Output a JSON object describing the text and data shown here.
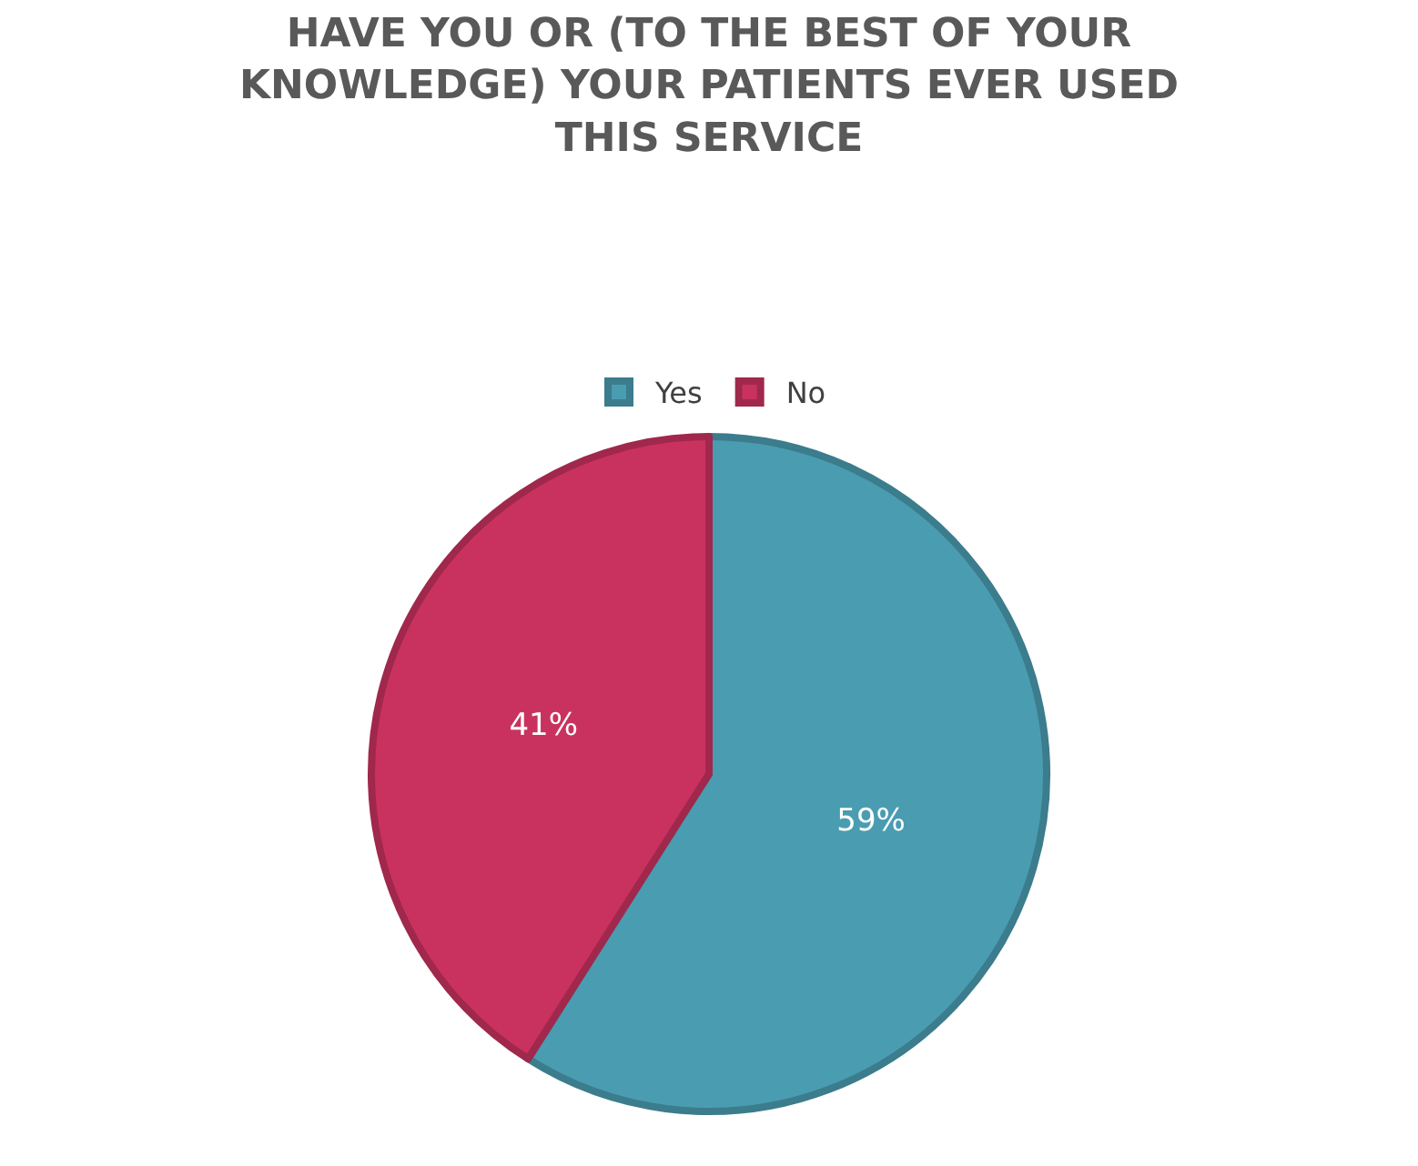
{
  "chart_data": {
    "type": "pie",
    "title": "HAVE YOU OR (TO THE BEST OF YOUR KNOWLEDGE) YOUR PATIENTS EVER USED THIS SERVICE",
    "categories": [
      "Yes",
      "No"
    ],
    "values": [
      59,
      41
    ],
    "colors": [
      "#4a9cb1",
      "#c9325f"
    ],
    "value_labels": [
      "59%",
      "41%"
    ],
    "legend": "top"
  }
}
